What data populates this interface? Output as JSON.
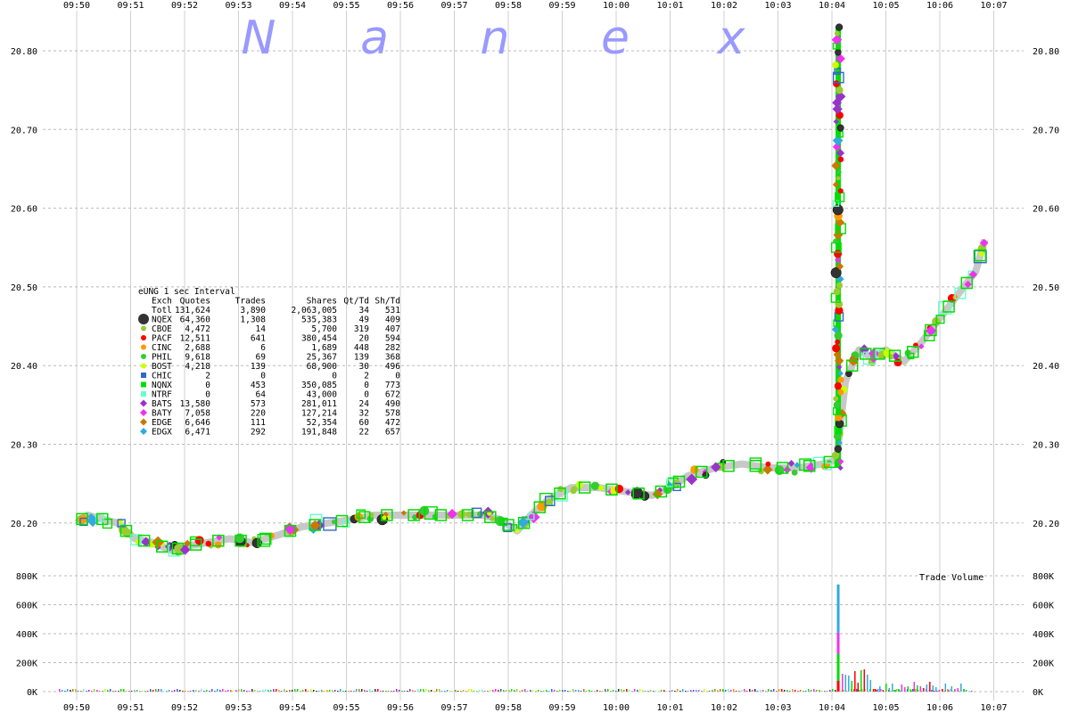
{
  "watermark": [
    "N",
    "a",
    "n",
    "e",
    "x"
  ],
  "chart_data": {
    "type": "scatter",
    "title": "eUNG 1 sec Interval",
    "x_ticks": [
      "09:50",
      "09:51",
      "09:52",
      "09:53",
      "09:54",
      "09:55",
      "09:56",
      "09:57",
      "09:58",
      "09:59",
      "10:00",
      "10:01",
      "10:02",
      "10:03",
      "10:04",
      "10:05",
      "10:06",
      "10:07"
    ],
    "price_ticks": [
      "20.20",
      "20.30",
      "20.40",
      "20.50",
      "20.60",
      "20.70",
      "20.80"
    ],
    "price_ylim": [
      20.135,
      20.865
    ],
    "volume_ticks": [
      "0K",
      "200K",
      "400K",
      "600K",
      "800K"
    ],
    "volume_ylim": [
      0,
      800000
    ],
    "volume_title": "Trade Volume",
    "grid": true,
    "legend_table": {
      "header": [
        "Exch",
        "Quotes",
        "Trades",
        "Shares",
        "Qt/Td",
        "Sh/Td"
      ],
      "rows": [
        {
          "exch": "Totl",
          "quotes": "131,624",
          "trades": "3,890",
          "shares": "2,063,005",
          "qt_td": "34",
          "sh_td": "531",
          "color": "",
          "marker": "none"
        },
        {
          "exch": "NQEX",
          "quotes": "64,360",
          "trades": "1,308",
          "shares": "535,383",
          "qt_td": "49",
          "sh_td": "409",
          "color": "#333333",
          "marker": "octagon"
        },
        {
          "exch": "CBOE",
          "quotes": "4,472",
          "trades": "14",
          "shares": "5,700",
          "qt_td": "319",
          "sh_td": "407",
          "color": "#99cc33",
          "marker": "circle"
        },
        {
          "exch": "PACF",
          "quotes": "12,511",
          "trades": "641",
          "shares": "380,454",
          "qt_td": "20",
          "sh_td": "594",
          "color": "#ff0000",
          "marker": "circle"
        },
        {
          "exch": "CINC",
          "quotes": "2,688",
          "trades": "6",
          "shares": "1,689",
          "qt_td": "448",
          "sh_td": "282",
          "color": "#ff9900",
          "marker": "circle"
        },
        {
          "exch": "PHIL",
          "quotes": "9,618",
          "trades": "69",
          "shares": "25,367",
          "qt_td": "139",
          "sh_td": "368",
          "color": "#33cc33",
          "marker": "circle"
        },
        {
          "exch": "BOST",
          "quotes": "4,218",
          "trades": "139",
          "shares": "68,900",
          "qt_td": "30",
          "sh_td": "496",
          "color": "#ccff00",
          "marker": "circle"
        },
        {
          "exch": "CHIC",
          "quotes": "2",
          "trades": "0",
          "shares": "0",
          "qt_td": "2",
          "sh_td": "0",
          "color": "#3366cc",
          "marker": "square"
        },
        {
          "exch": "NQNX",
          "quotes": "0",
          "trades": "453",
          "shares": "350,085",
          "qt_td": "0",
          "sh_td": "773",
          "color": "#00dd00",
          "marker": "square"
        },
        {
          "exch": "NTRF",
          "quotes": "0",
          "trades": "64",
          "shares": "43,000",
          "qt_td": "0",
          "sh_td": "672",
          "color": "#66ffcc",
          "marker": "square"
        },
        {
          "exch": "BATS",
          "quotes": "13,580",
          "trades": "573",
          "shares": "281,011",
          "qt_td": "24",
          "sh_td": "490",
          "color": "#9933cc",
          "marker": "diamond"
        },
        {
          "exch": "BATY",
          "quotes": "7,058",
          "trades": "220",
          "shares": "127,214",
          "qt_td": "32",
          "sh_td": "578",
          "color": "#ee33ee",
          "marker": "diamond"
        },
        {
          "exch": "EDGE",
          "quotes": "6,646",
          "trades": "111",
          "shares": "52,354",
          "qt_td": "60",
          "sh_td": "472",
          "color": "#cc7700",
          "marker": "diamond"
        },
        {
          "exch": "EDGX",
          "quotes": "6,471",
          "trades": "292",
          "shares": "191,848",
          "qt_td": "22",
          "sh_td": "657",
          "color": "#33aadd",
          "marker": "diamond"
        }
      ]
    },
    "price_trend": [
      {
        "t": "09:50:00",
        "p": 20.2
      },
      {
        "t": "09:50:12",
        "p": 20.21
      },
      {
        "t": "09:50:45",
        "p": 20.2
      },
      {
        "t": "09:51:05",
        "p": 20.18
      },
      {
        "t": "09:51:25",
        "p": 20.175
      },
      {
        "t": "09:51:45",
        "p": 20.165
      },
      {
        "t": "09:52:00",
        "p": 20.17
      },
      {
        "t": "09:52:25",
        "p": 20.175
      },
      {
        "t": "09:52:50",
        "p": 20.18
      },
      {
        "t": "09:53:15",
        "p": 20.175
      },
      {
        "t": "09:53:45",
        "p": 20.185
      },
      {
        "t": "09:54:10",
        "p": 20.195
      },
      {
        "t": "09:54:40",
        "p": 20.2
      },
      {
        "t": "09:55:10",
        "p": 20.205
      },
      {
        "t": "09:55:30",
        "p": 20.21
      },
      {
        "t": "09:56:00",
        "p": 20.21
      },
      {
        "t": "09:56:30",
        "p": 20.21
      },
      {
        "t": "09:57:00",
        "p": 20.21
      },
      {
        "t": "09:57:30",
        "p": 20.21
      },
      {
        "t": "09:57:50",
        "p": 20.205
      },
      {
        "t": "09:58:10",
        "p": 20.19
      },
      {
        "t": "09:58:25",
        "p": 20.21
      },
      {
        "t": "09:58:45",
        "p": 20.23
      },
      {
        "t": "09:59:10",
        "p": 20.245
      },
      {
        "t": "09:59:40",
        "p": 20.245
      },
      {
        "t": "10:00:10",
        "p": 20.24
      },
      {
        "t": "10:00:40",
        "p": 20.235
      },
      {
        "t": "10:01:00",
        "p": 20.245
      },
      {
        "t": "10:01:20",
        "p": 20.26
      },
      {
        "t": "10:01:50",
        "p": 20.27
      },
      {
        "t": "10:02:20",
        "p": 20.275
      },
      {
        "t": "10:02:50",
        "p": 20.27
      },
      {
        "t": "10:03:20",
        "p": 20.27
      },
      {
        "t": "10:03:50",
        "p": 20.275
      },
      {
        "t": "10:04:05",
        "p": 20.28
      }
    ],
    "spike": {
      "t": "10:04:07",
      "low": 20.27,
      "high": 20.83
    },
    "price_trend_after": [
      {
        "t": "10:04:15",
        "p": 20.38
      },
      {
        "t": "10:04:30",
        "p": 20.42
      },
      {
        "t": "10:04:45",
        "p": 20.41
      },
      {
        "t": "10:05:00",
        "p": 20.42
      },
      {
        "t": "10:05:20",
        "p": 20.405
      },
      {
        "t": "10:05:40",
        "p": 20.43
      },
      {
        "t": "10:06:00",
        "p": 20.46
      },
      {
        "t": "10:06:20",
        "p": 20.49
      },
      {
        "t": "10:06:40",
        "p": 20.52
      },
      {
        "t": "10:06:50",
        "p": 20.56
      }
    ],
    "volume_spike": {
      "t": "10:04:07",
      "value": 740000
    }
  }
}
